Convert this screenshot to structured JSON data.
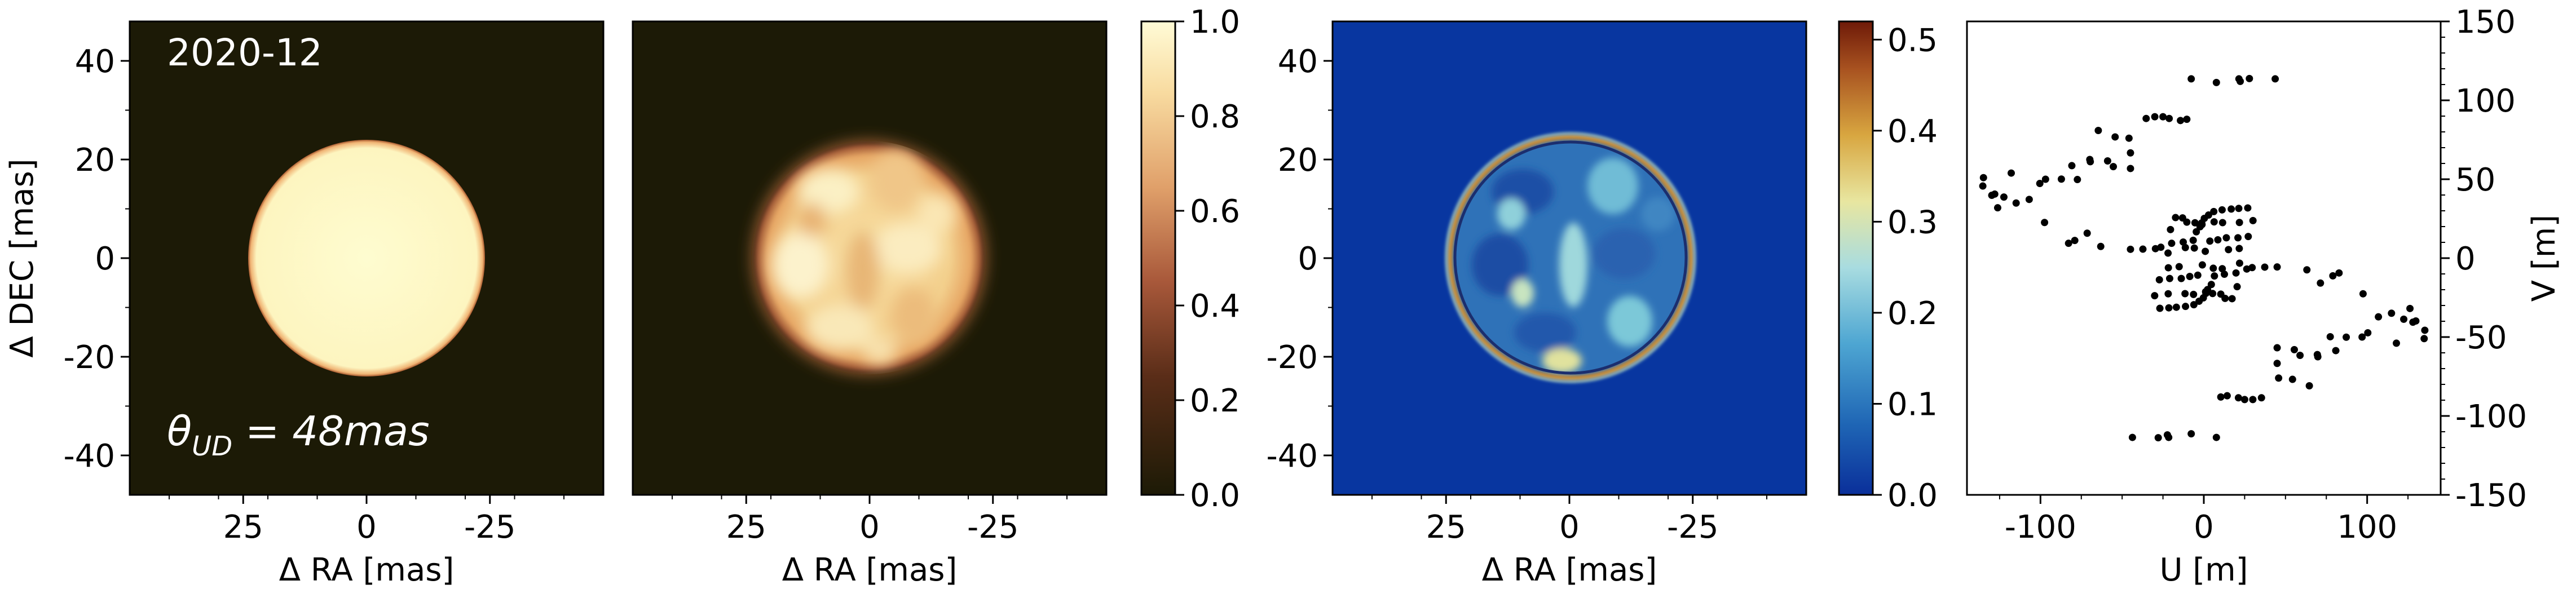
{
  "figure": {
    "epoch_label": "2020-12",
    "uniform_disk_label": "θ_UD = 48mas"
  },
  "colors": {
    "background_panel": "#1c1a06",
    "model_disk": "#fdf8c6",
    "residual_background": "#0836a0",
    "uv_points": "#000000"
  },
  "chart_data": [
    {
      "type": "heatmap",
      "title": "",
      "content": "uniform disk model image",
      "xlabel": "Δ RA [mas]",
      "ylabel": "Δ DEC [mas]",
      "xlim": [
        48,
        -48
      ],
      "ylim": [
        -48,
        48
      ],
      "xticks": [
        -25,
        0,
        25
      ],
      "yticks": [
        40,
        20,
        0,
        -20,
        -40
      ],
      "disk_diameter_mas": 48,
      "colormap": "afmhot-like (dark olive → cream)",
      "vrange": [
        0,
        1
      ]
    },
    {
      "type": "heatmap",
      "title": "",
      "content": "reconstructed image (mottled stellar disk)",
      "xlabel": "Δ RA [mas]",
      "xlim": [
        48,
        -48
      ],
      "ylim": [
        -48,
        48
      ],
      "xticks": [
        -25,
        0,
        25
      ],
      "disk_diameter_mas": 48,
      "colorbar": {
        "ticks": [
          "1.0",
          "0.8",
          "0.6",
          "0.4",
          "0.2",
          "0.0"
        ],
        "vrange": [
          0,
          1
        ]
      }
    },
    {
      "type": "heatmap",
      "title": "",
      "content": "absolute difference image",
      "xlabel": "Δ RA [mas]",
      "xlim": [
        48,
        -48
      ],
      "ylim": [
        -48,
        48
      ],
      "xticks": [
        -25,
        0,
        25
      ],
      "yticks": [
        40,
        20,
        0,
        -20,
        -40
      ],
      "colormap": "RdYlBu_r-like (blue → cyan → yellow → brown)",
      "colorbar": {
        "ticks": [
          "0.5",
          "0.4",
          "0.3",
          "0.2",
          "0.1",
          "0.0"
        ],
        "vrange": [
          0,
          0.52
        ]
      }
    },
    {
      "type": "scatter",
      "title": "",
      "content": "uv-plane coverage",
      "xlabel": "U [m]",
      "ylabel": "V [m]",
      "xlim": [
        -145,
        145
      ],
      "ylim": [
        -150,
        150
      ],
      "xticks": [
        -100,
        0,
        100
      ],
      "yticks": [
        150,
        100,
        50,
        0,
        -50,
        -100,
        -150
      ],
      "yaxis_side": "right",
      "points": [
        [
          -7.7,
          113.6
        ],
        [
          7.7,
          -113.6
        ],
        [
          7.7,
          111.3
        ],
        [
          -7.7,
          -111.3
        ],
        [
          22.3,
          112.0
        ],
        [
          -22.3,
          -112.0
        ],
        [
          21.5,
          113.6
        ],
        [
          -21.5,
          -113.6
        ],
        [
          27.9,
          113.8
        ],
        [
          -27.9,
          -113.8
        ],
        [
          43.7,
          113.6
        ],
        [
          -43.7,
          -113.6
        ],
        [
          -35.3,
          88.5
        ],
        [
          35.3,
          -88.5
        ],
        [
          -30.0,
          89.6
        ],
        [
          30.0,
          -89.6
        ],
        [
          -21.2,
          88.5
        ],
        [
          21.2,
          -88.5
        ],
        [
          -14.3,
          87.2
        ],
        [
          14.3,
          -87.2
        ],
        [
          -10.4,
          88.0
        ],
        [
          10.4,
          -88.0
        ],
        [
          -25.0,
          89.6
        ],
        [
          25.0,
          -89.6
        ],
        [
          -44.9,
          66.7
        ],
        [
          44.9,
          -66.7
        ],
        [
          -45.8,
          76.0
        ],
        [
          45.8,
          -76.0
        ],
        [
          -54.3,
          76.8
        ],
        [
          54.3,
          -76.8
        ],
        [
          -64.6,
          80.9
        ],
        [
          64.6,
          -80.9
        ],
        [
          -58.9,
          61.6
        ],
        [
          58.9,
          -61.6
        ],
        [
          -69.8,
          62.5
        ],
        [
          69.8,
          -62.5
        ],
        [
          -80.8,
          58.6
        ],
        [
          80.8,
          -58.6
        ],
        [
          -44.9,
          56.8
        ],
        [
          44.9,
          -56.8
        ],
        [
          -55.4,
          58.0
        ],
        [
          55.4,
          -58.0
        ],
        [
          -69.5,
          61.1
        ],
        [
          69.5,
          -61.1
        ],
        [
          -77.4,
          49.8
        ],
        [
          77.4,
          -49.8
        ],
        [
          -96.9,
          50.0
        ],
        [
          96.9,
          -50.0
        ],
        [
          -117.9,
          53.9
        ],
        [
          117.9,
          -53.9
        ],
        [
          -134.9,
          51.0
        ],
        [
          134.9,
          -51.0
        ],
        [
          -100.4,
          47.3
        ],
        [
          100.4,
          -47.3
        ],
        [
          -87.2,
          50.1
        ],
        [
          87.2,
          -50.1
        ],
        [
          -122.4,
          38.7
        ],
        [
          122.4,
          -38.7
        ],
        [
          -114.9,
          34.9
        ],
        [
          114.9,
          -34.9
        ],
        [
          -106.9,
          37.2
        ],
        [
          106.9,
          -37.2
        ],
        [
          -126.2,
          31.9
        ],
        [
          126.2,
          -31.9
        ],
        [
          -129.8,
          39.8
        ],
        [
          129.8,
          -39.8
        ],
        [
          -128.0,
          40.6
        ],
        [
          128.0,
          -40.6
        ],
        [
          -135.3,
          45.7
        ],
        [
          135.3,
          -45.7
        ],
        [
          -97.5,
          22.6
        ],
        [
          97.5,
          -22.6
        ],
        [
          -71.4,
          15.8
        ],
        [
          71.4,
          -15.8
        ],
        [
          -79.0,
          11.2
        ],
        [
          79.0,
          -11.2
        ],
        [
          -82.8,
          9.4
        ],
        [
          82.8,
          -9.4
        ],
        [
          -63.1,
          7.4
        ],
        [
          63.1,
          -7.4
        ],
        [
          -44.9,
          5.6
        ],
        [
          44.9,
          -5.6
        ],
        [
          -37.3,
          5.7
        ],
        [
          37.3,
          -5.7
        ],
        [
          -26.3,
          6.9
        ],
        [
          26.3,
          -6.9
        ],
        [
          -19.7,
          9.4
        ],
        [
          19.7,
          -9.4
        ],
        [
          -12.6,
          10.2
        ],
        [
          12.6,
          -10.2
        ],
        [
          -6.5,
          11.3
        ],
        [
          6.5,
          -11.3
        ],
        [
          -4.6,
          16.7
        ],
        [
          4.6,
          -16.7
        ],
        [
          -2.3,
          19.9
        ],
        [
          2.3,
          -19.9
        ],
        [
          0.3,
          25.2
        ],
        [
          -0.3,
          -25.2
        ],
        [
          2.9,
          27.3
        ],
        [
          -2.9,
          -27.3
        ],
        [
          6.1,
          29.5
        ],
        [
          -6.1,
          -29.5
        ],
        [
          11.2,
          30.6
        ],
        [
          -11.2,
          -30.6
        ],
        [
          16.8,
          31.1
        ],
        [
          -16.8,
          -31.1
        ],
        [
          21.4,
          31.5
        ],
        [
          -21.4,
          -31.5
        ],
        [
          26.9,
          31.8
        ],
        [
          -26.9,
          -31.8
        ],
        [
          -20.4,
          18.1
        ],
        [
          20.4,
          -18.1
        ],
        [
          -17.3,
          25.7
        ],
        [
          17.3,
          -25.7
        ],
        [
          -13.0,
          25.5
        ],
        [
          13.0,
          -25.5
        ],
        [
          -10.4,
          22.8
        ],
        [
          10.4,
          -22.8
        ],
        [
          -5.4,
          22.4
        ],
        [
          5.4,
          -22.4
        ],
        [
          -1.1,
          21.3
        ],
        [
          1.1,
          -21.3
        ],
        [
          -29.6,
          6.0
        ],
        [
          29.6,
          -6.0
        ],
        [
          -21.9,
          3.2
        ],
        [
          21.9,
          -3.2
        ],
        [
          -11.3,
          6.7
        ],
        [
          11.3,
          -6.7
        ],
        [
          -5.8,
          6.4
        ],
        [
          5.8,
          -6.4
        ],
        [
          0.9,
          4.3
        ],
        [
          -0.9,
          -4.3
        ],
        [
          15.1,
          5.4
        ],
        [
          -15.1,
          -5.4
        ],
        [
          21.7,
          6.1
        ],
        [
          -21.7,
          -6.1
        ],
        [
          -27.2,
          -13.7
        ],
        [
          27.2,
          13.7
        ],
        [
          -20.9,
          -12.9
        ],
        [
          20.9,
          12.9
        ],
        [
          -13.8,
          -12.9
        ],
        [
          13.8,
          12.9
        ],
        [
          -8.6,
          -11.6
        ],
        [
          8.6,
          11.6
        ],
        [
          -3.7,
          -10.8
        ],
        [
          3.7,
          10.8
        ],
        [
          -30.1,
          -23.8
        ],
        [
          30.1,
          23.8
        ],
        [
          -21.8,
          -22.6
        ],
        [
          21.8,
          22.6
        ],
        [
          -11.5,
          -22.5
        ],
        [
          11.5,
          22.5
        ],
        [
          -6.3,
          -23.0
        ],
        [
          6.3,
          23.0
        ],
        [
          1.3,
          -22.3
        ],
        [
          -1.3,
          22.3
        ]
      ]
    }
  ]
}
